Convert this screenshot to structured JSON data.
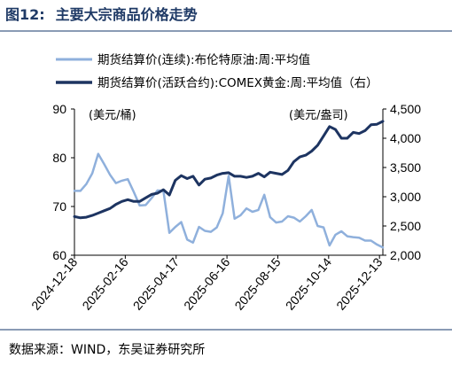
{
  "figure": {
    "number": "图12:",
    "title": "主要大宗商品价格走势",
    "source": "数据来源：WIND，东吴证券研究所"
  },
  "chart_data": {
    "type": "line",
    "x_start": "2024-12-18",
    "x_end": "2025-12-17",
    "x_tick_labels": [
      "2024-12-18",
      "2025-02-16",
      "2025-04-17",
      "2025-06-16",
      "2025-08-15",
      "2025-10-14",
      "2025-12-13"
    ],
    "left_axis": {
      "unit": "(美元/桶)",
      "ylim": [
        60,
        90
      ],
      "ticks": [
        "60",
        "70",
        "80",
        "90"
      ]
    },
    "right_axis": {
      "unit": "(美元/盎司)",
      "ylim": [
        2000,
        4500
      ],
      "ticks": [
        "2,000",
        "2,500",
        "3,000",
        "3,500",
        "4,000",
        "4,500"
      ]
    },
    "legend_position": "top",
    "grid": false,
    "series": [
      {
        "name": "期货结算价(连续):布伦特原油:周:平均值",
        "axis": "left",
        "color": "#8fb0dc",
        "points": [
          [
            "2024-12-18",
            73.2
          ],
          [
            "2024-12-25",
            73.2
          ],
          [
            "2025-01-01",
            74.6
          ],
          [
            "2025-01-08",
            76.8
          ],
          [
            "2025-01-15",
            80.8
          ],
          [
            "2025-01-22",
            78.7
          ],
          [
            "2025-01-29",
            76.5
          ],
          [
            "2025-02-05",
            74.8
          ],
          [
            "2025-02-12",
            75.3
          ],
          [
            "2025-02-19",
            75.6
          ],
          [
            "2025-02-26",
            73.0
          ],
          [
            "2025-03-05",
            70.2
          ],
          [
            "2025-03-12",
            70.3
          ],
          [
            "2025-03-19",
            71.7
          ],
          [
            "2025-03-26",
            73.3
          ],
          [
            "2025-04-02",
            73.2
          ],
          [
            "2025-04-09",
            64.6
          ],
          [
            "2025-04-16",
            65.8
          ],
          [
            "2025-04-23",
            66.8
          ],
          [
            "2025-04-30",
            63.2
          ],
          [
            "2025-05-07",
            62.6
          ],
          [
            "2025-05-14",
            65.8
          ],
          [
            "2025-05-21",
            65.0
          ],
          [
            "2025-05-28",
            64.8
          ],
          [
            "2025-06-04",
            65.7
          ],
          [
            "2025-06-11",
            68.6
          ],
          [
            "2025-06-18",
            76.3
          ],
          [
            "2025-06-25",
            67.5
          ],
          [
            "2025-07-02",
            68.2
          ],
          [
            "2025-07-09",
            69.6
          ],
          [
            "2025-07-16",
            68.9
          ],
          [
            "2025-07-23",
            69.3
          ],
          [
            "2025-07-30",
            72.4
          ],
          [
            "2025-08-06",
            67.8
          ],
          [
            "2025-08-13",
            66.7
          ],
          [
            "2025-08-20",
            66.9
          ],
          [
            "2025-08-27",
            68.0
          ],
          [
            "2025-09-03",
            67.7
          ],
          [
            "2025-09-10",
            66.9
          ],
          [
            "2025-09-17",
            68.0
          ],
          [
            "2025-09-24",
            69.3
          ],
          [
            "2025-10-01",
            66.0
          ],
          [
            "2025-10-08",
            65.7
          ],
          [
            "2025-10-15",
            62.0
          ],
          [
            "2025-10-22",
            64.2
          ],
          [
            "2025-10-29",
            64.9
          ],
          [
            "2025-11-05",
            63.9
          ],
          [
            "2025-11-12",
            63.7
          ],
          [
            "2025-11-19",
            63.6
          ],
          [
            "2025-11-26",
            63.0
          ],
          [
            "2025-12-03",
            63.0
          ],
          [
            "2025-12-10",
            62.2
          ],
          [
            "2025-12-17",
            61.6
          ]
        ]
      },
      {
        "name": "期货结算价(活跃合约):COMEX黄金:周:平均值（右）",
        "axis": "right",
        "color": "#1d3461",
        "points": [
          [
            "2024-12-18",
            2660
          ],
          [
            "2024-12-25",
            2640
          ],
          [
            "2025-01-01",
            2650
          ],
          [
            "2025-01-08",
            2680
          ],
          [
            "2025-01-15",
            2720
          ],
          [
            "2025-01-22",
            2760
          ],
          [
            "2025-01-29",
            2800
          ],
          [
            "2025-02-05",
            2870
          ],
          [
            "2025-02-12",
            2920
          ],
          [
            "2025-02-19",
            2950
          ],
          [
            "2025-02-26",
            2920
          ],
          [
            "2025-03-05",
            2920
          ],
          [
            "2025-03-12",
            2980
          ],
          [
            "2025-03-19",
            3040
          ],
          [
            "2025-03-26",
            3060
          ],
          [
            "2025-04-02",
            3120
          ],
          [
            "2025-04-09",
            3030
          ],
          [
            "2025-04-16",
            3280
          ],
          [
            "2025-04-23",
            3360
          ],
          [
            "2025-04-30",
            3310
          ],
          [
            "2025-05-07",
            3350
          ],
          [
            "2025-05-14",
            3200
          ],
          [
            "2025-05-21",
            3300
          ],
          [
            "2025-05-28",
            3320
          ],
          [
            "2025-06-04",
            3370
          ],
          [
            "2025-06-11",
            3400
          ],
          [
            "2025-06-18",
            3410
          ],
          [
            "2025-06-25",
            3350
          ],
          [
            "2025-07-02",
            3350
          ],
          [
            "2025-07-09",
            3330
          ],
          [
            "2025-07-16",
            3350
          ],
          [
            "2025-07-23",
            3400
          ],
          [
            "2025-07-30",
            3340
          ],
          [
            "2025-08-06",
            3420
          ],
          [
            "2025-08-13",
            3400
          ],
          [
            "2025-08-20",
            3380
          ],
          [
            "2025-08-27",
            3450
          ],
          [
            "2025-09-03",
            3600
          ],
          [
            "2025-09-10",
            3680
          ],
          [
            "2025-09-17",
            3710
          ],
          [
            "2025-09-24",
            3780
          ],
          [
            "2025-10-01",
            3880
          ],
          [
            "2025-10-08",
            4040
          ],
          [
            "2025-10-15",
            4200
          ],
          [
            "2025-10-22",
            4150
          ],
          [
            "2025-10-29",
            4000
          ],
          [
            "2025-11-05",
            4000
          ],
          [
            "2025-11-12",
            4100
          ],
          [
            "2025-11-19",
            4080
          ],
          [
            "2025-11-26",
            4130
          ],
          [
            "2025-12-03",
            4230
          ],
          [
            "2025-12-10",
            4240
          ],
          [
            "2025-12-17",
            4290
          ]
        ]
      }
    ]
  }
}
